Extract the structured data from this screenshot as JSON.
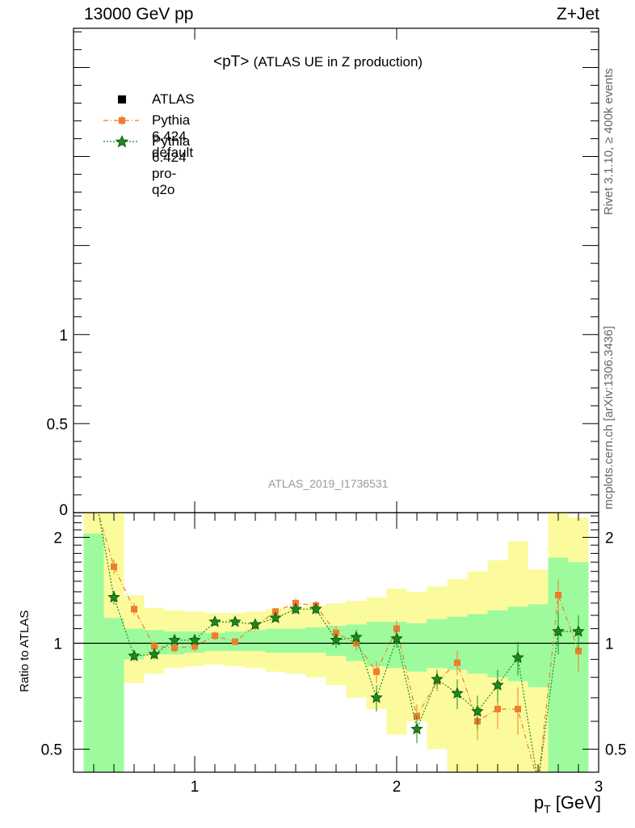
{
  "header": {
    "energy_label": "13000 GeV pp",
    "process_label": "Z+Jet"
  },
  "title": {
    "observable": "<pT>",
    "subtitle": "(ATLAS UE in Z production)"
  },
  "side": {
    "rivet": "Rivet 3.1.10, ≥ 400k events",
    "mcplots": "mcplots.cern.ch [arXiv:1306.3436]"
  },
  "watermark": "ATLAS_2019_I1736531",
  "axes": {
    "ratio_ylabel": "Ratio to ATLAS",
    "xlabel_main": "p",
    "xlabel_sub": "T",
    "xlabel_unit": " [GeV]"
  },
  "legend": [
    {
      "label": "ATLAS"
    },
    {
      "label": "Pythia 6.424 default"
    },
    {
      "label": "Pythia 6.424 pro-q2o"
    }
  ],
  "colors": {
    "data": "#000000",
    "default": "#f07c2c",
    "proq2o": "#1a8a1a",
    "band_inner": "#9dfb9d",
    "band_outer": "#fbfb9d",
    "ratio_band": "#ff3333"
  },
  "chart_data": [
    {
      "type": "line",
      "panel": "main",
      "ylim": [
        0,
        2.72
      ],
      "xlim": [
        0.4,
        3.0
      ],
      "yticks": [
        {
          "v": 0,
          "label": "0"
        },
        {
          "v": 0.5,
          "label": "0.5"
        },
        {
          "v": 1,
          "label": "1"
        }
      ],
      "series": []
    },
    {
      "type": "line",
      "panel": "ratio",
      "ylabel": "Ratio to ATLAS",
      "log_y": true,
      "ylim": [
        0.43,
        2.35
      ],
      "xlim": [
        0.4,
        3.0
      ],
      "xticks": [
        {
          "v": 1,
          "label": "1"
        },
        {
          "v": 2,
          "label": "2"
        },
        {
          "v": 3,
          "label": "3"
        }
      ],
      "yticks": [
        {
          "v": 0.5,
          "label": "0.5"
        },
        {
          "v": 1,
          "label": "1"
        },
        {
          "v": 2,
          "label": "2"
        }
      ],
      "bands": {
        "edges": [
          0.45,
          0.55,
          0.65,
          0.75,
          0.85,
          0.95,
          1.05,
          1.15,
          1.25,
          1.35,
          1.45,
          1.55,
          1.65,
          1.75,
          1.85,
          1.95,
          2.05,
          2.15,
          2.25,
          2.35,
          2.45,
          2.55,
          2.65,
          2.75,
          2.85,
          2.95
        ],
        "inner_low": [
          0.3,
          0.3,
          0.9,
          0.93,
          0.93,
          0.94,
          0.95,
          0.95,
          0.95,
          0.94,
          0.94,
          0.94,
          0.92,
          0.89,
          0.86,
          0.85,
          0.83,
          0.85,
          0.84,
          0.82,
          0.8,
          0.78,
          0.75,
          0.3,
          0.3
        ],
        "inner_high": [
          2.05,
          1.18,
          1.1,
          1.09,
          1.08,
          1.08,
          1.07,
          1.08,
          1.09,
          1.1,
          1.1,
          1.11,
          1.12,
          1.13,
          1.15,
          1.15,
          1.14,
          1.17,
          1.19,
          1.21,
          1.24,
          1.27,
          1.29,
          1.75,
          1.7
        ],
        "outer_low": [
          0.3,
          0.59,
          0.77,
          0.82,
          0.85,
          0.86,
          0.87,
          0.86,
          0.85,
          0.83,
          0.82,
          0.8,
          0.76,
          0.7,
          0.65,
          0.55,
          0.6,
          0.5,
          0.3,
          0.3,
          0.3,
          0.3,
          0.3,
          0.3,
          0.3
        ],
        "outer_high": [
          2.4,
          2.4,
          1.37,
          1.26,
          1.24,
          1.23,
          1.22,
          1.22,
          1.23,
          1.25,
          1.27,
          1.28,
          1.3,
          1.32,
          1.35,
          1.43,
          1.4,
          1.45,
          1.52,
          1.6,
          1.72,
          1.95,
          1.62,
          2.4,
          2.28
        ]
      },
      "reference": 1.0,
      "series": [
        {
          "name": "Pythia 6.424 default",
          "marker": "square",
          "x": [
            0.5,
            0.6,
            0.7,
            0.8,
            0.9,
            1.0,
            1.1,
            1.2,
            1.3,
            1.4,
            1.5,
            1.6,
            1.7,
            1.8,
            1.9,
            2.0,
            2.1,
            2.2,
            2.3,
            2.4,
            2.5,
            2.6,
            2.7,
            2.8,
            2.9
          ],
          "y": [
            2.6,
            1.65,
            1.25,
            0.98,
            0.97,
            0.98,
            1.05,
            1.01,
            1.12,
            1.23,
            1.3,
            1.28,
            1.07,
            1.0,
            0.83,
            1.1,
            0.62,
            0.78,
            0.88,
            0.6,
            0.65,
            0.65,
            0.4,
            1.37,
            0.95
          ],
          "err": [
            0.05,
            0.08,
            0.05,
            0.03,
            0.03,
            0.03,
            0.03,
            0.02,
            0.03,
            0.03,
            0.04,
            0.04,
            0.05,
            0.05,
            0.06,
            0.06,
            0.05,
            0.05,
            0.07,
            0.07,
            0.08,
            0.1,
            0.15,
            0.15,
            0.12
          ]
        },
        {
          "name": "Pythia 6.424 pro-q2o",
          "marker": "star",
          "x": [
            0.5,
            0.6,
            0.7,
            0.8,
            0.9,
            1.0,
            1.1,
            1.2,
            1.3,
            1.4,
            1.5,
            1.6,
            1.7,
            1.8,
            1.9,
            2.0,
            2.1,
            2.2,
            2.3,
            2.4,
            2.5,
            2.6,
            2.7,
            2.8,
            2.9
          ],
          "y": [
            2.8,
            1.35,
            0.92,
            0.93,
            1.02,
            1.02,
            1.15,
            1.15,
            1.13,
            1.18,
            1.25,
            1.25,
            1.02,
            1.04,
            0.7,
            1.03,
            0.57,
            0.79,
            0.72,
            0.64,
            0.76,
            0.91,
            0.4,
            1.08,
            1.08
          ],
          "err": [
            0.05,
            0.06,
            0.03,
            0.03,
            0.03,
            0.03,
            0.03,
            0.02,
            0.03,
            0.03,
            0.04,
            0.04,
            0.05,
            0.05,
            0.06,
            0.06,
            0.05,
            0.05,
            0.07,
            0.07,
            0.08,
            0.1,
            0.15,
            0.15,
            0.12
          ]
        }
      ]
    }
  ]
}
